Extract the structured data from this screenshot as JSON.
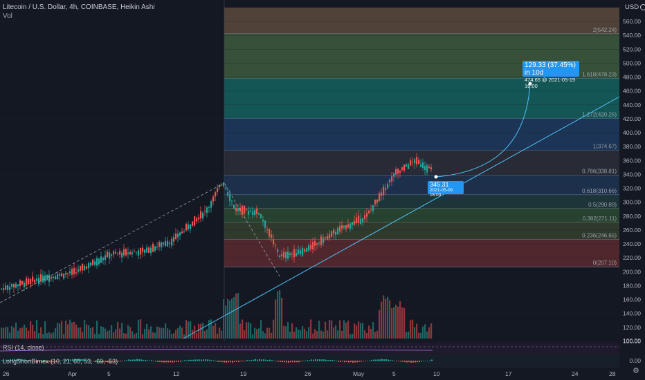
{
  "header": {
    "title": "Litecoin / U.S. Dollar, 4h, COINBASE, Heikin Ashi",
    "volume_label": "Vol",
    "currency": "USD",
    "currency_icon": "dropdown-chevron-icon"
  },
  "price_axis": {
    "labels": [
      "560.00",
      "540.00",
      "520.00",
      "500.00",
      "480.00",
      "460.00",
      "440.00",
      "420.00",
      "400.00",
      "380.00",
      "360.00",
      "340.00",
      "320.00",
      "300.00",
      "280.00",
      "260.00",
      "240.00",
      "220.00",
      "200.00",
      "180.00",
      "160.00",
      "140.00",
      "120.00",
      "100.00"
    ],
    "values": [
      560,
      540,
      520,
      500,
      480,
      460,
      440,
      420,
      400,
      380,
      360,
      340,
      320,
      300,
      280,
      260,
      240,
      220,
      200,
      180,
      160,
      140,
      120,
      100
    ],
    "rsi_level_label": "100.00",
    "osc_level_label": "0.00"
  },
  "time_axis": {
    "labels": [
      "26",
      "Apr",
      "5",
      "12",
      "19",
      "26",
      "May",
      "5",
      "10",
      "17",
      "24",
      "28"
    ]
  },
  "fib_levels": [
    {
      "ratio": "2",
      "price": 542.24,
      "label": "2(542.24)",
      "fill": "#5a4a3c"
    },
    {
      "ratio": "1.618",
      "price": 478.23,
      "label": "1.618(478.23)",
      "fill": "#3d5a3d"
    },
    {
      "ratio": "1.272",
      "price": 420.25,
      "label": "1.272(420.25)",
      "fill": "#14605f"
    },
    {
      "ratio": "1",
      "price": 374.67,
      "label": "1(374.67)",
      "fill": "#1d3a5e"
    },
    {
      "ratio": "0.786",
      "price": 338.81,
      "label": "0.786(338.81)",
      "fill": "#2b2f3a"
    },
    {
      "ratio": "0.618",
      "price": 310.66,
      "label": "0.618(310.66)",
      "fill": "#1f3552"
    },
    {
      "ratio": "0.5",
      "price": 290.89,
      "label": "0.5(290.89)",
      "fill": "#1e3b3d"
    },
    {
      "ratio": "0.382",
      "price": 271.11,
      "label": "0.382(271.11)",
      "fill": "#2a4a30"
    },
    {
      "ratio": "0.236",
      "price": 246.65,
      "label": "0.236(246.65)",
      "fill": "#34402e"
    },
    {
      "ratio": "0",
      "price": 207.1,
      "label": "0(207.10)",
      "fill": "#5a2a2e"
    }
  ],
  "fib_top_price": 580,
  "projection": {
    "headline": "129.33 (37.45%) in 10d",
    "detail": "474.65 @ 2021-05-19 16:00",
    "current_price": "345.31",
    "current_date": "2021-05-09 16:00"
  },
  "indicators": {
    "rsi": "RSI (14, close)",
    "oscillator": "LongShortBimex (10, 21, 60, 53, -60, -53)"
  },
  "colors": {
    "up": "#26a69a",
    "down": "#ef5350",
    "accent": "#2196f3",
    "background": "#141823"
  },
  "chart_data": {
    "type": "candlestick",
    "title": "Litecoin / U.S. Dollar, 4h, COINBASE, Heikin Ashi",
    "ylim": [
      100,
      570
    ],
    "price_series": {
      "x_dates": [
        "Mar 24",
        "Mar 29",
        "Apr 1",
        "Apr 5",
        "Apr 8",
        "Apr 12",
        "Apr 15",
        "Apr 16",
        "Apr 18",
        "Apr 20",
        "Apr 23",
        "Apr 26",
        "May 1",
        "May 3",
        "May 5",
        "May 7",
        "May 9"
      ],
      "close": [
        175,
        190,
        200,
        225,
        230,
        245,
        290,
        330,
        290,
        285,
        222,
        230,
        260,
        280,
        340,
        360,
        345
      ]
    },
    "annotations": [
      "2(542.24)",
      "1.618(478.23)",
      "1.272(420.25)",
      "1(374.67)",
      "0.786(338.81)",
      "0.618(310.66)",
      "0.5(290.89)",
      "0.382(271.11)",
      "0.236(246.65)",
      "0(207.10)"
    ]
  }
}
